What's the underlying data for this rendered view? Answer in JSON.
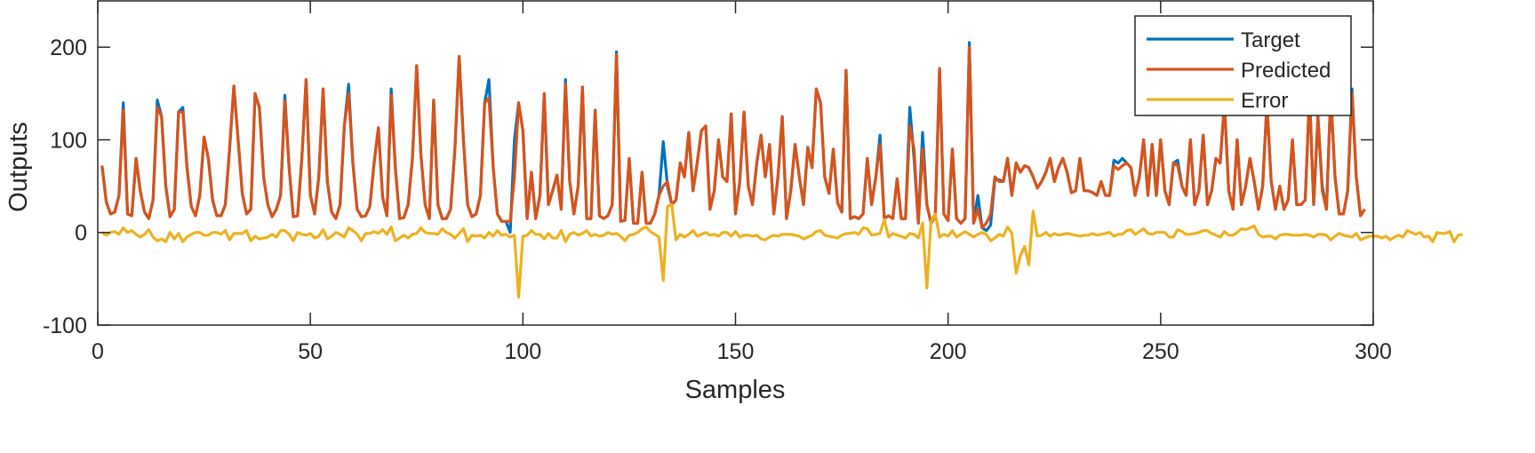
{
  "chart_data": {
    "type": "line",
    "title": "",
    "xlabel": "Samples",
    "ylabel": "Outputs",
    "xlim": [
      0,
      300
    ],
    "ylim": [
      -100,
      250
    ],
    "xticks": [
      "0",
      "50",
      "100",
      "150",
      "200",
      "250",
      "300"
    ],
    "xtick_values": [
      0,
      50,
      100,
      150,
      200,
      250,
      300
    ],
    "yticks": [
      "-100",
      "0",
      "100",
      "200"
    ],
    "ytick_values": [
      -100,
      0,
      100,
      200
    ],
    "grid": false,
    "legend_position": "top-right",
    "series": [
      {
        "name": "Target",
        "color": "#0072BD",
        "values": [
          72,
          33,
          20,
          22,
          40,
          140,
          20,
          18,
          80,
          45,
          22,
          15,
          35,
          143,
          125,
          50,
          17,
          25,
          130,
          135,
          70,
          28,
          18,
          40,
          103,
          80,
          35,
          18,
          18,
          30,
          90,
          158,
          100,
          42,
          20,
          25,
          150,
          135,
          60,
          30,
          17,
          25,
          40,
          148,
          70,
          17,
          18,
          80,
          165,
          40,
          20,
          60,
          155,
          55,
          22,
          15,
          30,
          115,
          160,
          75,
          25,
          17,
          18,
          28,
          75,
          113,
          38,
          18,
          155,
          70,
          15,
          16,
          30,
          80,
          180,
          85,
          30,
          15,
          143,
          30,
          15,
          15,
          25,
          90,
          190,
          100,
          30,
          17,
          20,
          40,
          140,
          165,
          70,
          20,
          12,
          12,
          0,
          100,
          140,
          110,
          15,
          65,
          15,
          40,
          150,
          30,
          45,
          62,
          25,
          165,
          55,
          20,
          50,
          157,
          15,
          15,
          132,
          18,
          15,
          18,
          30,
          195,
          12,
          13,
          80,
          10,
          10,
          65,
          10,
          10,
          20,
          40,
          98,
          50,
          30,
          35,
          75,
          60,
          108,
          45,
          75,
          110,
          115,
          25,
          45,
          100,
          60,
          55,
          128,
          20,
          55,
          130,
          50,
          30,
          75,
          105,
          60,
          95,
          20,
          60,
          125,
          15,
          45,
          95,
          60,
          30,
          92,
          70,
          155,
          140,
          60,
          42,
          90,
          32,
          22,
          175,
          15,
          17,
          15,
          20,
          80,
          30,
          60,
          105,
          15,
          18,
          15,
          58,
          15,
          15,
          135,
          80,
          10,
          108,
          30,
          10,
          18,
          177,
          20,
          13,
          90,
          15,
          10,
          15,
          205,
          10,
          40,
          5,
          2,
          8,
          57,
          57,
          55,
          80,
          40,
          75,
          65,
          72,
          70,
          60,
          48,
          55,
          65,
          80,
          55,
          70,
          80,
          65,
          43,
          45,
          80,
          45,
          45,
          43,
          40,
          55,
          40,
          40,
          78,
          75,
          80,
          75,
          70,
          40,
          60,
          100,
          40,
          95,
          40,
          100,
          45,
          30,
          75,
          78,
          50,
          40,
          100,
          30,
          45,
          105,
          30,
          45,
          80,
          75,
          140,
          45,
          25,
          100,
          30,
          50,
          80,
          55,
          25,
          50,
          140,
          55,
          25,
          50,
          25,
          35,
          100,
          30,
          30,
          35,
          150,
          30,
          125,
          50,
          25,
          150,
          60,
          20,
          20,
          45,
          155,
          60,
          18,
          25
        ]
      },
      {
        "name": "Predicted",
        "color": "#D95319",
        "values": [
          72,
          33,
          20,
          22,
          40,
          132,
          20,
          18,
          80,
          45,
          22,
          15,
          35,
          135,
          125,
          50,
          17,
          25,
          130,
          130,
          70,
          28,
          18,
          40,
          103,
          80,
          35,
          18,
          18,
          30,
          90,
          158,
          100,
          42,
          20,
          25,
          150,
          135,
          60,
          30,
          17,
          25,
          40,
          142,
          70,
          17,
          18,
          80,
          165,
          40,
          20,
          60,
          155,
          55,
          22,
          15,
          30,
          115,
          150,
          75,
          25,
          17,
          18,
          28,
          75,
          113,
          38,
          18,
          148,
          70,
          15,
          16,
          30,
          80,
          180,
          85,
          30,
          15,
          143,
          30,
          15,
          15,
          25,
          90,
          190,
          100,
          30,
          17,
          20,
          40,
          140,
          145,
          70,
          20,
          12,
          12,
          12,
          60,
          140,
          110,
          15,
          65,
          15,
          40,
          150,
          30,
          45,
          62,
          25,
          160,
          55,
          20,
          50,
          157,
          15,
          15,
          132,
          18,
          15,
          18,
          30,
          192,
          12,
          13,
          80,
          10,
          10,
          65,
          10,
          10,
          20,
          40,
          50,
          55,
          30,
          35,
          75,
          60,
          108,
          45,
          75,
          110,
          115,
          25,
          45,
          100,
          60,
          55,
          128,
          20,
          55,
          130,
          50,
          30,
          75,
          105,
          60,
          95,
          20,
          60,
          125,
          15,
          45,
          95,
          60,
          30,
          92,
          70,
          155,
          140,
          60,
          42,
          90,
          32,
          22,
          175,
          15,
          17,
          15,
          20,
          80,
          30,
          60,
          95,
          15,
          18,
          15,
          58,
          15,
          15,
          115,
          90,
          10,
          90,
          30,
          10,
          18,
          177,
          20,
          13,
          90,
          15,
          10,
          15,
          200,
          10,
          25,
          5,
          10,
          20,
          60,
          55,
          55,
          80,
          40,
          75,
          65,
          72,
          70,
          60,
          48,
          55,
          65,
          80,
          55,
          70,
          80,
          65,
          43,
          45,
          80,
          45,
          45,
          43,
          40,
          55,
          40,
          40,
          72,
          68,
          72,
          75,
          70,
          40,
          60,
          100,
          40,
          95,
          40,
          100,
          45,
          30,
          75,
          72,
          50,
          40,
          100,
          30,
          45,
          105,
          30,
          45,
          80,
          75,
          140,
          45,
          25,
          100,
          30,
          50,
          80,
          55,
          25,
          50,
          140,
          55,
          25,
          50,
          25,
          35,
          100,
          30,
          30,
          35,
          150,
          30,
          125,
          45,
          25,
          150,
          60,
          20,
          20,
          45,
          150,
          60,
          18,
          25
        ]
      },
      {
        "name": "Error",
        "color": "#EDB120",
        "values": [
          0,
          -3,
          0,
          1,
          -2,
          5,
          0,
          2,
          -2,
          -5,
          -2,
          3,
          -5,
          -9,
          -7,
          -10,
          0,
          -7,
          -1,
          -10,
          -5,
          -2,
          0,
          0,
          -3,
          -3,
          0,
          0,
          -2,
          2,
          -8,
          -1,
          -1,
          -1,
          2,
          -9,
          -4,
          -7,
          -6,
          -5,
          -2,
          -5,
          2,
          2,
          -2,
          -9,
          0,
          -2,
          -3,
          -1,
          -6,
          -4,
          3,
          -7,
          -4,
          0,
          -2,
          -5,
          5,
          2,
          -2,
          -9,
          -1,
          -1,
          1,
          -1,
          3,
          -2,
          6,
          -9,
          -6,
          -3,
          -6,
          -2,
          -1,
          5,
          0,
          -1,
          -1,
          -2,
          4,
          0,
          -2,
          -6,
          -1,
          4,
          -10,
          -3,
          -4,
          -3,
          -6,
          0,
          -4,
          2,
          -3,
          -2,
          -5,
          -3,
          -70,
          -4,
          -3,
          2,
          -2,
          -2,
          -7,
          -1,
          -6,
          -6,
          2,
          -10,
          -2,
          0,
          -3,
          -1,
          2,
          -4,
          -2,
          -4,
          -3,
          0,
          -2,
          -1,
          -4,
          -9,
          -3,
          -2,
          0,
          4,
          6,
          1,
          -2,
          -5,
          -52,
          28,
          30,
          -8,
          -2,
          -5,
          -2,
          2,
          -4,
          -2,
          0,
          -3,
          -2,
          -4,
          0,
          0,
          -4,
          1,
          -5,
          -3,
          -3,
          -4,
          -3,
          -7,
          -8,
          -5,
          -3,
          -4,
          -2,
          -2,
          -2,
          -3,
          -4,
          -7,
          -5,
          -3,
          1,
          2,
          -3,
          -4,
          -5,
          -6,
          -3,
          -1,
          -1,
          0,
          -2,
          5,
          4,
          -3,
          -2,
          -1,
          14,
          -5,
          -1,
          -3,
          -4,
          -6,
          -1,
          -2,
          -6,
          10,
          -60,
          12,
          20,
          -5,
          -2,
          -4,
          2,
          -5,
          -2,
          1,
          -2,
          -5,
          -2,
          0,
          -2,
          -9,
          -6,
          -2,
          -4,
          6,
          -1,
          -44,
          -25,
          -15,
          -35,
          23,
          -4,
          -3,
          0,
          -4,
          -1,
          -3,
          -2,
          -1,
          -2,
          -3,
          -4,
          -3,
          -3,
          -1,
          -3,
          -2,
          -1,
          0,
          -4,
          -2,
          -2,
          2,
          3,
          -2,
          1,
          4,
          -1,
          -2,
          0,
          0,
          0,
          -5,
          -5,
          3,
          1,
          -2,
          -2,
          -1,
          0,
          2,
          2,
          -1,
          -3,
          -5,
          1,
          -3,
          -3,
          0,
          4,
          3,
          5,
          7,
          -2,
          -5,
          -4,
          -4,
          -7,
          -3,
          -2,
          -2,
          -3,
          -3,
          -3,
          -2,
          -3,
          -5,
          -2,
          -2,
          -3,
          -8,
          -4,
          -1,
          -3,
          -4,
          -5,
          -1,
          -8,
          -6,
          -4,
          -4,
          -4,
          -6,
          -4,
          -8,
          -5,
          -3,
          -5,
          2,
          0,
          -2,
          0,
          -5,
          -4,
          -10,
          0,
          -1,
          -1,
          1,
          -10,
          -3,
          -2
        ]
      }
    ]
  }
}
